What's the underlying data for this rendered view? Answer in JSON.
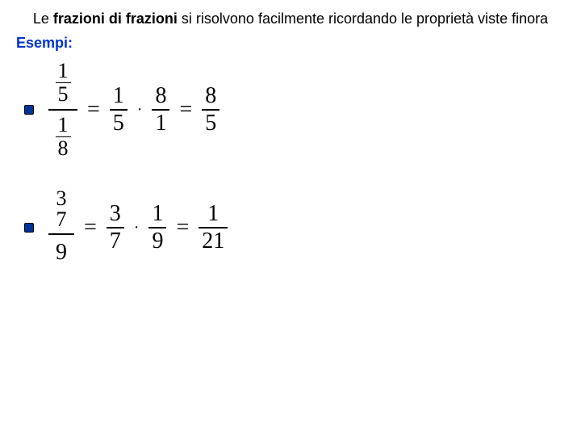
{
  "heading": {
    "pre": "Le ",
    "bold": "frazioni di frazioni",
    "post": " si risolvono facilmente ricordando le proprietà viste finora",
    "font_size": 18,
    "bold_color": "#000000"
  },
  "esempi": {
    "label": "Esempi:",
    "color": "#0033cc",
    "font_size": 18
  },
  "bullet": {
    "fill": "#003399",
    "size": 10
  },
  "math_style": {
    "font_family": "Times New Roman",
    "font_size": 28,
    "color": "#000000"
  },
  "example1": {
    "lhs": {
      "top_num": "1",
      "top_den": "5",
      "bot_num": "1",
      "bot_den": "8"
    },
    "step": {
      "a_num": "1",
      "a_den": "5",
      "b_num": "8",
      "b_den": "1"
    },
    "result": {
      "num": "8",
      "den": "5"
    },
    "eq": "=",
    "dot": "·"
  },
  "example2": {
    "lhs": {
      "top_num": "3",
      "top_den": "7",
      "bot": "9"
    },
    "step": {
      "a_num": "3",
      "a_den": "7",
      "b_num": "1",
      "b_den": "9"
    },
    "result": {
      "num": "1",
      "den": "21"
    },
    "eq": "=",
    "dot": "·"
  }
}
